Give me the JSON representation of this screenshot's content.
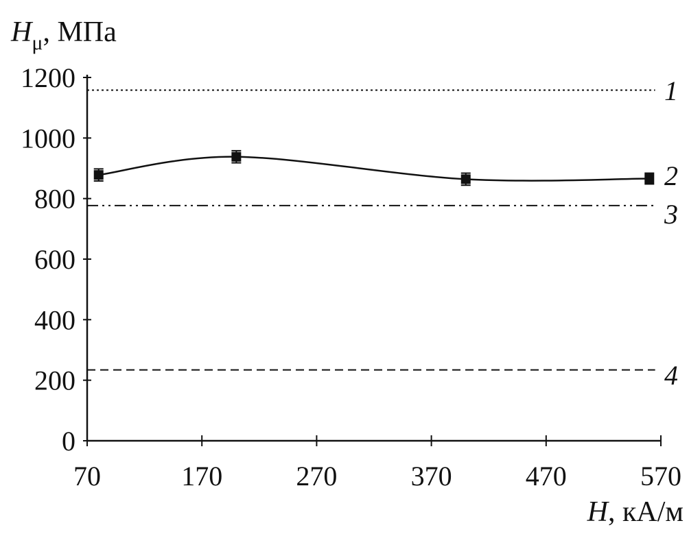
{
  "chart_data": {
    "type": "line",
    "title": "",
    "xlabel": {
      "symbol": "H",
      "unit": ", кА/м"
    },
    "ylabel": {
      "symbol": "H",
      "subscript": "μ",
      "unit": ", МПа"
    },
    "xlim": [
      70,
      570
    ],
    "ylim": [
      0,
      1200
    ],
    "x_ticks": [
      70,
      170,
      270,
      370,
      470,
      570
    ],
    "y_ticks": [
      0,
      200,
      400,
      600,
      800,
      1000,
      1200
    ],
    "grid": false,
    "series": [
      {
        "name": "1",
        "style": "dotted",
        "x": [
          70,
          565
        ],
        "y": [
          1158,
          1158
        ]
      },
      {
        "name": "2",
        "style": "solid-with-markers",
        "marker": "square",
        "x": [
          80,
          200,
          400,
          560
        ],
        "y": [
          878,
          938,
          864,
          866
        ],
        "error": [
          20,
          20,
          20,
          18
        ]
      },
      {
        "name": "3",
        "style": "dash-dot-dot",
        "x": [
          70,
          565
        ],
        "y": [
          777,
          777
        ]
      },
      {
        "name": "4",
        "style": "dashed",
        "x": [
          70,
          565
        ],
        "y": [
          234,
          234
        ]
      }
    ],
    "colors": {
      "line": "#111111",
      "axis": "#111111",
      "background": "#ffffff"
    }
  }
}
